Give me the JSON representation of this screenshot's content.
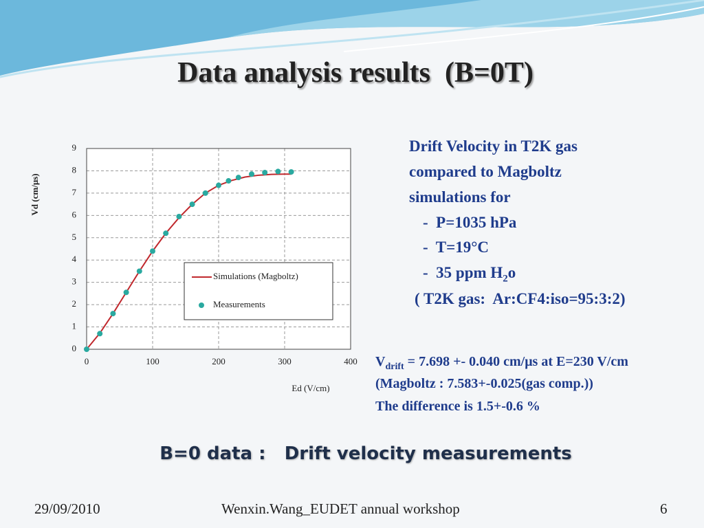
{
  "title": "Data analysis results  (B=0T)",
  "description": [
    "Drift Velocity in T2K gas",
    "compared to Magboltz",
    "simulations for",
    "-  P=1035 hPa",
    "-  T=19°C",
    {
      "pre": "-  35 ppm H",
      "sub": "2",
      "post": "o"
    },
    "( T2K gas:  Ar:CF4:iso=95:3:2)"
  ],
  "result": [
    {
      "pre": "V",
      "sub": "drift",
      "post": " = 7.698 +- 0.040 cm/μs at E=230 V/cm"
    },
    "(Magboltz : 7.583+-0.025(gas comp.))",
    "The difference is 1.5+-0.6 %"
  ],
  "subtitle": "B=0 data :   Drift velocity measurements",
  "footer": {
    "date": "29/09/2010",
    "author": "Wenxin.Wang_EUDET annual workshop",
    "page": "6"
  },
  "chart_data": {
    "type": "scatter",
    "x_label": "Ed (V/cm)",
    "y_label": "Vd (cm/μs)",
    "xlim": [
      0,
      400
    ],
    "ylim": [
      0,
      9
    ],
    "xticks": [
      0,
      100,
      200,
      300,
      400
    ],
    "yticks": [
      0,
      1,
      2,
      3,
      4,
      5,
      6,
      7,
      8,
      9
    ],
    "grid": true,
    "series": [
      {
        "name": "Simulations (Magboltz)",
        "kind": "line",
        "color": "#c0282d",
        "x": [
          0,
          20,
          40,
          60,
          80,
          100,
          120,
          140,
          160,
          180,
          200,
          220,
          240,
          260,
          280,
          300,
          310
        ],
        "values": [
          0,
          0.72,
          1.6,
          2.55,
          3.5,
          4.4,
          5.2,
          5.9,
          6.5,
          7.0,
          7.35,
          7.57,
          7.72,
          7.8,
          7.84,
          7.85,
          7.85
        ]
      },
      {
        "name": "Measurements",
        "kind": "points",
        "color": "#2aa9a0",
        "x": [
          0,
          20,
          40,
          60,
          80,
          100,
          120,
          140,
          160,
          180,
          200,
          215,
          230,
          250,
          270,
          290,
          310
        ],
        "values": [
          0,
          0.7,
          1.6,
          2.55,
          3.5,
          4.4,
          5.2,
          5.95,
          6.5,
          7.0,
          7.35,
          7.55,
          7.7,
          7.85,
          7.92,
          7.97,
          7.95
        ]
      }
    ]
  }
}
